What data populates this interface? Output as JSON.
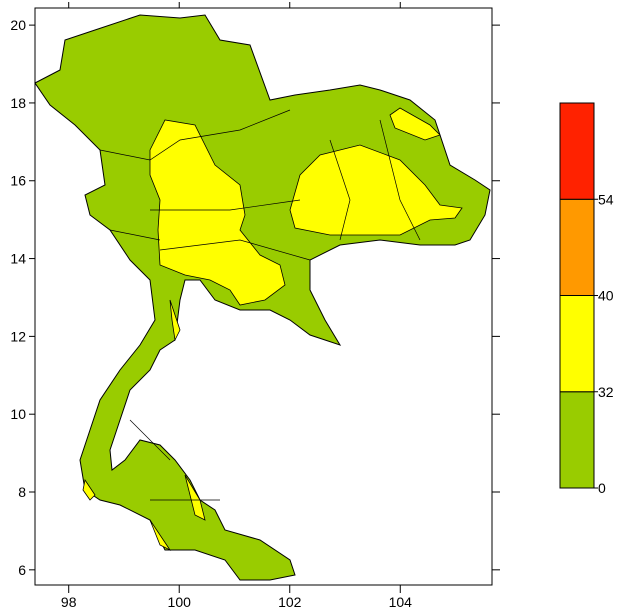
{
  "map": {
    "xlim": [
      97.39,
      105.66
    ],
    "ylim": [
      5.61,
      20.44
    ],
    "xticks": [
      98,
      100,
      102,
      104
    ],
    "yticks": [
      6,
      8,
      10,
      12,
      14,
      16,
      18,
      20
    ]
  },
  "colorbar": {
    "levels": [
      0,
      32,
      40,
      54
    ],
    "colors": [
      "#99cc00",
      "#ffff00",
      "#ff9900",
      "#ff2200"
    ]
  }
}
